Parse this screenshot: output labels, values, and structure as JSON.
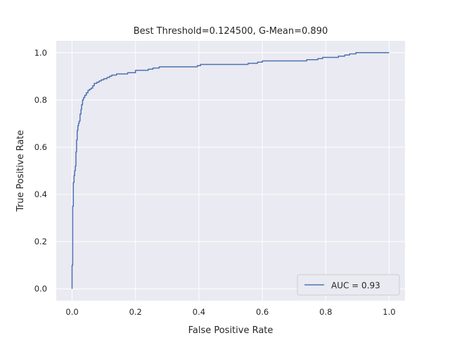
{
  "chart_data": {
    "type": "line",
    "title": "Best Threshold=0.124500, G-Mean=0.890",
    "xlabel": "False Positive Rate",
    "ylabel": "True Positive Rate",
    "xlim": [
      -0.05,
      1.05
    ],
    "ylim": [
      -0.05,
      1.05
    ],
    "xticks": [
      0.0,
      0.2,
      0.4,
      0.6,
      0.8,
      1.0
    ],
    "xtick_labels": [
      "0.0",
      "0.2",
      "0.4",
      "0.6",
      "0.8",
      "1.0"
    ],
    "yticks": [
      0.0,
      0.2,
      0.4,
      0.6,
      0.8,
      1.0
    ],
    "ytick_labels": [
      "0.0",
      "0.2",
      "0.4",
      "0.6",
      "0.8",
      "1.0"
    ],
    "grid": true,
    "legend_position": "lower-right",
    "colors": {
      "line": "#4c72b0",
      "plot_bg": "#eaeaf2",
      "grid": "#ffffff"
    },
    "series": [
      {
        "name": "AUC = 0.93",
        "x": [
          0.0,
          0.0,
          0.002,
          0.002,
          0.004,
          0.004,
          0.006,
          0.006,
          0.008,
          0.008,
          0.01,
          0.01,
          0.012,
          0.012,
          0.014,
          0.014,
          0.016,
          0.016,
          0.018,
          0.018,
          0.02,
          0.02,
          0.022,
          0.022,
          0.025,
          0.025,
          0.028,
          0.028,
          0.03,
          0.03,
          0.033,
          0.033,
          0.036,
          0.036,
          0.04,
          0.04,
          0.045,
          0.045,
          0.05,
          0.05,
          0.055,
          0.055,
          0.06,
          0.06,
          0.065,
          0.065,
          0.07,
          0.07,
          0.078,
          0.078,
          0.085,
          0.085,
          0.092,
          0.092,
          0.1,
          0.1,
          0.11,
          0.11,
          0.118,
          0.118,
          0.125,
          0.125,
          0.14,
          0.14,
          0.175,
          0.175,
          0.2,
          0.2,
          0.24,
          0.24,
          0.255,
          0.255,
          0.275,
          0.275,
          0.395,
          0.395,
          0.405,
          0.405,
          0.555,
          0.555,
          0.585,
          0.585,
          0.6,
          0.6,
          0.74,
          0.74,
          0.775,
          0.775,
          0.79,
          0.79,
          0.84,
          0.84,
          0.86,
          0.86,
          0.875,
          0.875,
          0.895,
          0.895,
          0.93,
          0.93,
          0.96,
          0.96,
          1.0
        ],
        "y": [
          0.0,
          0.1,
          0.1,
          0.35,
          0.35,
          0.45,
          0.45,
          0.48,
          0.48,
          0.5,
          0.5,
          0.52,
          0.52,
          0.58,
          0.58,
          0.63,
          0.63,
          0.67,
          0.67,
          0.69,
          0.69,
          0.7,
          0.7,
          0.71,
          0.71,
          0.74,
          0.74,
          0.76,
          0.76,
          0.78,
          0.78,
          0.8,
          0.8,
          0.81,
          0.81,
          0.82,
          0.82,
          0.83,
          0.83,
          0.84,
          0.84,
          0.845,
          0.845,
          0.85,
          0.85,
          0.86,
          0.86,
          0.87,
          0.87,
          0.875,
          0.875,
          0.88,
          0.88,
          0.885,
          0.885,
          0.89,
          0.89,
          0.895,
          0.895,
          0.9,
          0.9,
          0.905,
          0.905,
          0.91,
          0.91,
          0.915,
          0.915,
          0.925,
          0.925,
          0.93,
          0.93,
          0.935,
          0.935,
          0.94,
          0.94,
          0.945,
          0.945,
          0.95,
          0.95,
          0.955,
          0.955,
          0.96,
          0.96,
          0.965,
          0.965,
          0.97,
          0.97,
          0.975,
          0.975,
          0.98,
          0.98,
          0.985,
          0.985,
          0.99,
          0.99,
          0.995,
          0.995,
          1.0,
          1.0,
          1.0,
          1.0,
          1.0,
          1.0
        ]
      }
    ]
  }
}
